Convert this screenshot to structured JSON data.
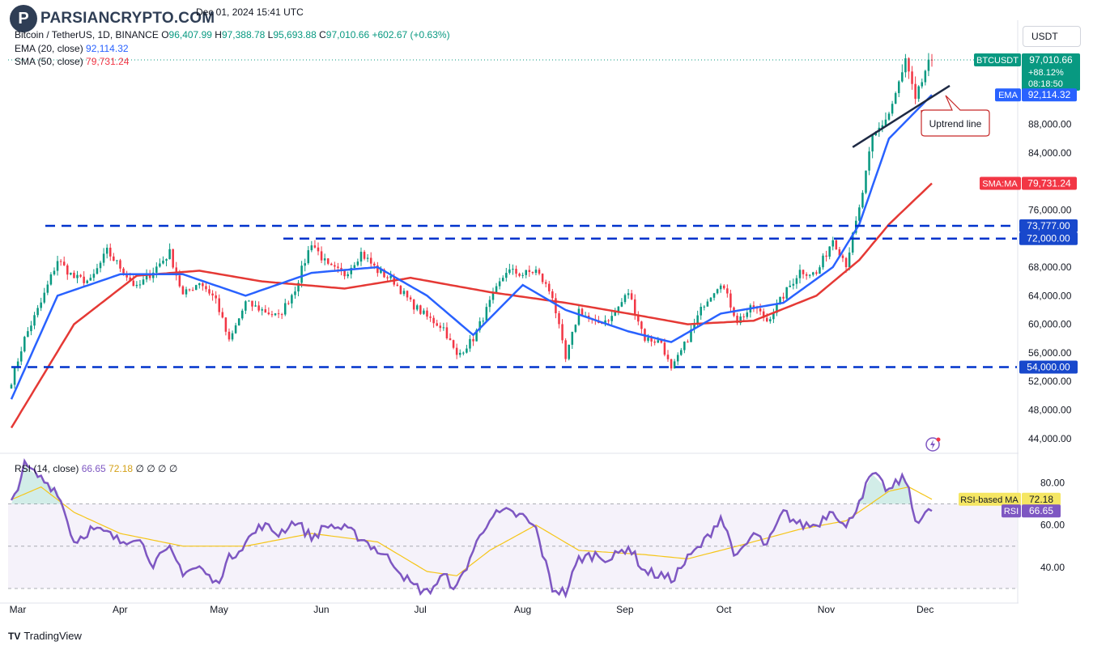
{
  "watermark": {
    "name": "PARSIANCRYPTO.COM",
    "badge": "P"
  },
  "header": {
    "date": "Dec 01, 2024 15:41 UTC",
    "symbol": "Bitcoin / TetherUS, 1D, BINANCE",
    "open_label": "O",
    "open": "96,407.99",
    "high_label": "H",
    "high": "97,388.78",
    "low_label": "L",
    "low": "95,693.88",
    "close_label": "C",
    "close": "97,010.66",
    "change": "+602.67 (+0.63%)",
    "ema_label": "EMA (20, close)",
    "ema_value": "92,114.32",
    "sma_label": "SMA (50, close)",
    "sma_value": "79,731.24"
  },
  "currency_button": "USDT",
  "footer": {
    "brand": "TradingView",
    "icon": "TV"
  },
  "colors": {
    "up": "#089981",
    "down": "#f23645",
    "ema": "#2962ff",
    "sma": "#e53935",
    "rsi": "#7e57c2",
    "rsi_ma": "#f5c518",
    "level": "#0033cc"
  },
  "chart_data": {
    "type": "candlestick",
    "symbol": "BTCUSDT",
    "x_ticks": [
      "Mar",
      "Apr",
      "May",
      "Jun",
      "Jul",
      "Aug",
      "Sep",
      "Oct",
      "Nov",
      "Dec"
    ],
    "y_ticks": [
      "44,000.00",
      "48,000.00",
      "52,000.00",
      "56,000.00",
      "60,000.00",
      "64,000.00",
      "68,000.00",
      "72,000.00",
      "76,000.00",
      "80,000.00",
      "84,000.00",
      "88,000.00",
      "92,000.00",
      "96,000.00"
    ],
    "ylim": [
      42500,
      102000
    ],
    "price_labels": {
      "btc": {
        "symbol": "BTCUSDT",
        "value": "97,010.66",
        "change_pct": "+88.12%",
        "countdown": "08:18:50"
      },
      "ema": {
        "name": "EMA",
        "value": "92,114.32"
      },
      "sma": {
        "name": "SMA:MA",
        "value": "79,731.24"
      }
    },
    "levels": [
      {
        "value": 73777,
        "label": "73,777.00"
      },
      {
        "value": 72000,
        "label": "72,000.00"
      },
      {
        "value": 54000,
        "label": "54,000.00"
      }
    ],
    "annotation": "Uptrend line",
    "trendline": [
      [
        84800,
        0.0
      ],
      [
        93400,
        1.0
      ]
    ],
    "close_anchors": [
      [
        0,
        52000
      ],
      [
        4,
        58000
      ],
      [
        9,
        63000
      ],
      [
        14,
        69000
      ],
      [
        19,
        66500
      ],
      [
        24,
        66000
      ],
      [
        29,
        70200
      ],
      [
        33,
        68000
      ],
      [
        38,
        65000
      ],
      [
        43,
        67500
      ],
      [
        48,
        70000
      ],
      [
        52,
        64000
      ],
      [
        57,
        66000
      ],
      [
        62,
        63500
      ],
      [
        66,
        57500
      ],
      [
        71,
        63000
      ],
      [
        76,
        62000
      ],
      [
        81,
        61000
      ],
      [
        86,
        65000
      ],
      [
        91,
        71500
      ],
      [
        96,
        68000
      ],
      [
        101,
        67000
      ],
      [
        106,
        70000
      ],
      [
        111,
        67500
      ],
      [
        116,
        66000
      ],
      [
        121,
        63000
      ],
      [
        126,
        61000
      ],
      [
        131,
        59500
      ],
      [
        135,
        55500
      ],
      [
        140,
        58000
      ],
      [
        145,
        63000
      ],
      [
        150,
        67500
      ],
      [
        155,
        67000
      ],
      [
        159,
        67500
      ],
      [
        164,
        64000
      ],
      [
        168,
        55000
      ],
      [
        172,
        62000
      ],
      [
        177,
        60000
      ],
      [
        182,
        61000
      ],
      [
        187,
        64500
      ],
      [
        192,
        58000
      ],
      [
        197,
        57500
      ],
      [
        200,
        53500
      ],
      [
        205,
        58000
      ],
      [
        210,
        63000
      ],
      [
        215,
        66000
      ],
      [
        220,
        60500
      ],
      [
        225,
        62500
      ],
      [
        229,
        60500
      ],
      [
        234,
        64000
      ],
      [
        239,
        67500
      ],
      [
        244,
        67000
      ],
      [
        249,
        72000
      ],
      [
        253,
        68500
      ],
      [
        257,
        76000
      ],
      [
        261,
        86000
      ],
      [
        266,
        89500
      ],
      [
        270,
        95000
      ],
      [
        271,
        97000
      ],
      [
        274,
        91000
      ],
      [
        277,
        95500
      ],
      [
        279,
        97010
      ]
    ],
    "ema_anchors": [
      [
        0,
        49500
      ],
      [
        14,
        64000
      ],
      [
        33,
        67000
      ],
      [
        52,
        67000
      ],
      [
        71,
        64000
      ],
      [
        91,
        67200
      ],
      [
        111,
        68000
      ],
      [
        126,
        64000
      ],
      [
        140,
        58500
      ],
      [
        155,
        65500
      ],
      [
        168,
        62000
      ],
      [
        187,
        59000
      ],
      [
        200,
        57500
      ],
      [
        215,
        61500
      ],
      [
        234,
        63000
      ],
      [
        249,
        68000
      ],
      [
        257,
        74000
      ],
      [
        266,
        86000
      ],
      [
        279,
        92114
      ]
    ],
    "sma_anchors": [
      [
        0,
        45500
      ],
      [
        19,
        60000
      ],
      [
        38,
        66800
      ],
      [
        57,
        67500
      ],
      [
        76,
        66000
      ],
      [
        101,
        65000
      ],
      [
        121,
        66500
      ],
      [
        145,
        64500
      ],
      [
        168,
        63000
      ],
      [
        187,
        61500
      ],
      [
        205,
        60000
      ],
      [
        225,
        60500
      ],
      [
        244,
        64000
      ],
      [
        257,
        69000
      ],
      [
        266,
        74000
      ],
      [
        279,
        79731
      ]
    ],
    "rsi": {
      "label": "RSI (14, close)",
      "value": "66.65",
      "ma_value": "72.18",
      "extras": "∅ ∅ ∅ ∅",
      "ma_name": "RSI-based MA",
      "name": "RSI",
      "y_ticks": [
        "40.00",
        "60.00",
        "80.00"
      ],
      "ylim": [
        25,
        92
      ],
      "bands": [
        30,
        50,
        70
      ],
      "anchors": [
        [
          0,
          70
        ],
        [
          4,
          88
        ],
        [
          9,
          82
        ],
        [
          14,
          76
        ],
        [
          17,
          62
        ],
        [
          19,
          52
        ],
        [
          24,
          58
        ],
        [
          29,
          56
        ],
        [
          33,
          52
        ],
        [
          38,
          55
        ],
        [
          43,
          42
        ],
        [
          48,
          48
        ],
        [
          52,
          38
        ],
        [
          57,
          40
        ],
        [
          62,
          32
        ],
        [
          66,
          44
        ],
        [
          71,
          52
        ],
        [
          76,
          60
        ],
        [
          81,
          56
        ],
        [
          86,
          62
        ],
        [
          91,
          54
        ],
        [
          96,
          60
        ],
        [
          101,
          58
        ],
        [
          106,
          54
        ],
        [
          111,
          48
        ],
        [
          116,
          42
        ],
        [
          121,
          32
        ],
        [
          126,
          28
        ],
        [
          131,
          36
        ],
        [
          135,
          30
        ],
        [
          140,
          48
        ],
        [
          145,
          64
        ],
        [
          150,
          66
        ],
        [
          155,
          64
        ],
        [
          159,
          58
        ],
        [
          164,
          30
        ],
        [
          168,
          28
        ],
        [
          172,
          44
        ],
        [
          177,
          46
        ],
        [
          182,
          44
        ],
        [
          187,
          50
        ],
        [
          192,
          38
        ],
        [
          197,
          36
        ],
        [
          200,
          34
        ],
        [
          205,
          44
        ],
        [
          210,
          52
        ],
        [
          215,
          64
        ],
        [
          220,
          44
        ],
        [
          225,
          56
        ],
        [
          229,
          50
        ],
        [
          234,
          66
        ],
        [
          239,
          60
        ],
        [
          244,
          60
        ],
        [
          249,
          68
        ],
        [
          253,
          58
        ],
        [
          257,
          72
        ],
        [
          261,
          84
        ],
        [
          266,
          76
        ],
        [
          270,
          82
        ],
        [
          271,
          82
        ],
        [
          274,
          62
        ],
        [
          277,
          66
        ],
        [
          279,
          66.65
        ]
      ],
      "ma_anchors": [
        [
          0,
          72
        ],
        [
          9,
          78
        ],
        [
          19,
          66
        ],
        [
          33,
          56
        ],
        [
          52,
          50
        ],
        [
          71,
          50
        ],
        [
          91,
          56
        ],
        [
          111,
          52
        ],
        [
          126,
          38
        ],
        [
          135,
          36
        ],
        [
          145,
          48
        ],
        [
          159,
          60
        ],
        [
          172,
          48
        ],
        [
          192,
          46
        ],
        [
          205,
          44
        ],
        [
          220,
          50
        ],
        [
          239,
          58
        ],
        [
          253,
          62
        ],
        [
          266,
          76
        ],
        [
          272,
          78
        ],
        [
          279,
          72.18
        ]
      ]
    }
  }
}
